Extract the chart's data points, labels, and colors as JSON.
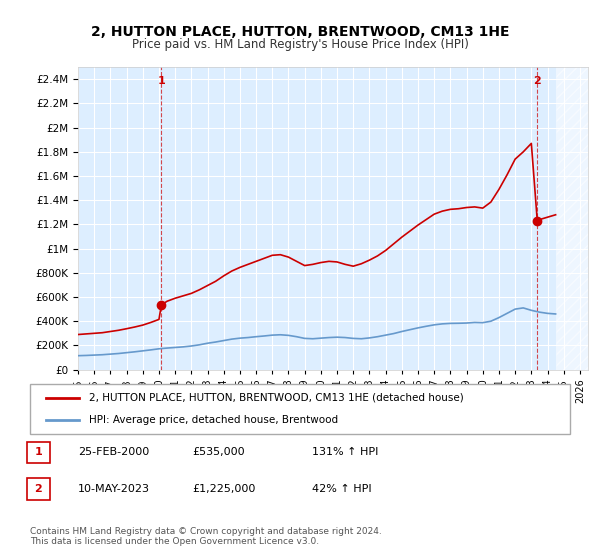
{
  "title": "2, HUTTON PLACE, HUTTON, BRENTWOOD, CM13 1HE",
  "subtitle": "Price paid vs. HM Land Registry's House Price Index (HPI)",
  "legend_line1": "2, HUTTON PLACE, HUTTON, BRENTWOOD, CM13 1HE (detached house)",
  "legend_line2": "HPI: Average price, detached house, Brentwood",
  "sale1_label": "1",
  "sale1_date": "25-FEB-2000",
  "sale1_price": "£535,000",
  "sale1_hpi": "131% ↑ HPI",
  "sale2_label": "2",
  "sale2_date": "10-MAY-2023",
  "sale2_price": "£1,225,000",
  "sale2_hpi": "42% ↑ HPI",
  "footer": "Contains HM Land Registry data © Crown copyright and database right 2024.\nThis data is licensed under the Open Government Licence v3.0.",
  "ylim": [
    0,
    2500000
  ],
  "yticks": [
    0,
    200000,
    400000,
    600000,
    800000,
    1000000,
    1200000,
    1400000,
    1600000,
    1800000,
    2000000,
    2200000,
    2400000
  ],
  "xlim_start": 1995.0,
  "xlim_end": 2026.5,
  "xticks": [
    1995,
    1996,
    1997,
    1998,
    1999,
    2000,
    2001,
    2002,
    2003,
    2004,
    2005,
    2006,
    2007,
    2008,
    2009,
    2010,
    2011,
    2012,
    2013,
    2014,
    2015,
    2016,
    2017,
    2018,
    2019,
    2020,
    2021,
    2022,
    2023,
    2024,
    2025,
    2026
  ],
  "property_color": "#cc0000",
  "hpi_color": "#6699cc",
  "background_color": "#ddeeff",
  "plot_bg": "#ddeeff",
  "grid_color": "#ffffff",
  "sale1_x": 2000.15,
  "sale1_y": 535000,
  "sale2_x": 2023.37,
  "sale2_y": 1225000,
  "hpi_years": [
    1995,
    1995.5,
    1996,
    1996.5,
    1997,
    1997.5,
    1998,
    1998.5,
    1999,
    1999.5,
    2000,
    2000.5,
    2001,
    2001.5,
    2002,
    2002.5,
    2003,
    2003.5,
    2004,
    2004.5,
    2005,
    2005.5,
    2006,
    2006.5,
    2007,
    2007.5,
    2008,
    2008.5,
    2009,
    2009.5,
    2010,
    2010.5,
    2011,
    2011.5,
    2012,
    2012.5,
    2013,
    2013.5,
    2014,
    2014.5,
    2015,
    2015.5,
    2016,
    2016.5,
    2017,
    2017.5,
    2018,
    2018.5,
    2019,
    2019.5,
    2020,
    2020.5,
    2021,
    2021.5,
    2022,
    2022.5,
    2023,
    2023.5,
    2024,
    2024.5
  ],
  "hpi_values": [
    115000,
    117000,
    120000,
    123000,
    128000,
    133000,
    140000,
    147000,
    155000,
    163000,
    172000,
    178000,
    183000,
    188000,
    195000,
    205000,
    218000,
    228000,
    240000,
    252000,
    260000,
    265000,
    272000,
    278000,
    285000,
    288000,
    283000,
    272000,
    258000,
    255000,
    260000,
    265000,
    268000,
    265000,
    258000,
    255000,
    262000,
    272000,
    285000,
    298000,
    315000,
    330000,
    345000,
    358000,
    370000,
    378000,
    382000,
    383000,
    385000,
    390000,
    388000,
    400000,
    430000,
    465000,
    500000,
    510000,
    490000,
    475000,
    465000,
    460000
  ],
  "prop_years": [
    1995,
    1995.5,
    1996,
    1996.5,
    1997,
    1997.5,
    1998,
    1998.5,
    1999,
    1999.5,
    2000,
    2000.15,
    2000.5,
    2001,
    2001.5,
    2002,
    2002.5,
    2003,
    2003.5,
    2004,
    2004.5,
    2005,
    2005.5,
    2006,
    2006.5,
    2007,
    2007.5,
    2008,
    2008.5,
    2009,
    2009.5,
    2010,
    2010.5,
    2011,
    2011.5,
    2012,
    2012.5,
    2013,
    2013.5,
    2014,
    2014.5,
    2015,
    2015.5,
    2016,
    2016.5,
    2017,
    2017.5,
    2018,
    2018.5,
    2019,
    2019.5,
    2020,
    2020.5,
    2021,
    2021.5,
    2022,
    2022.5,
    2023,
    2023.37,
    2023.5,
    2024,
    2024.5
  ],
  "prop_values": [
    290000,
    295000,
    300000,
    305000,
    315000,
    325000,
    338000,
    352000,
    368000,
    390000,
    415000,
    535000,
    565000,
    590000,
    610000,
    630000,
    660000,
    695000,
    730000,
    775000,
    815000,
    845000,
    870000,
    895000,
    920000,
    945000,
    950000,
    930000,
    895000,
    860000,
    870000,
    885000,
    895000,
    890000,
    870000,
    855000,
    875000,
    905000,
    940000,
    985000,
    1040000,
    1095000,
    1145000,
    1195000,
    1240000,
    1285000,
    1310000,
    1325000,
    1330000,
    1340000,
    1345000,
    1335000,
    1385000,
    1490000,
    1610000,
    1740000,
    1800000,
    1870000,
    1225000,
    1240000,
    1260000,
    1280000
  ]
}
